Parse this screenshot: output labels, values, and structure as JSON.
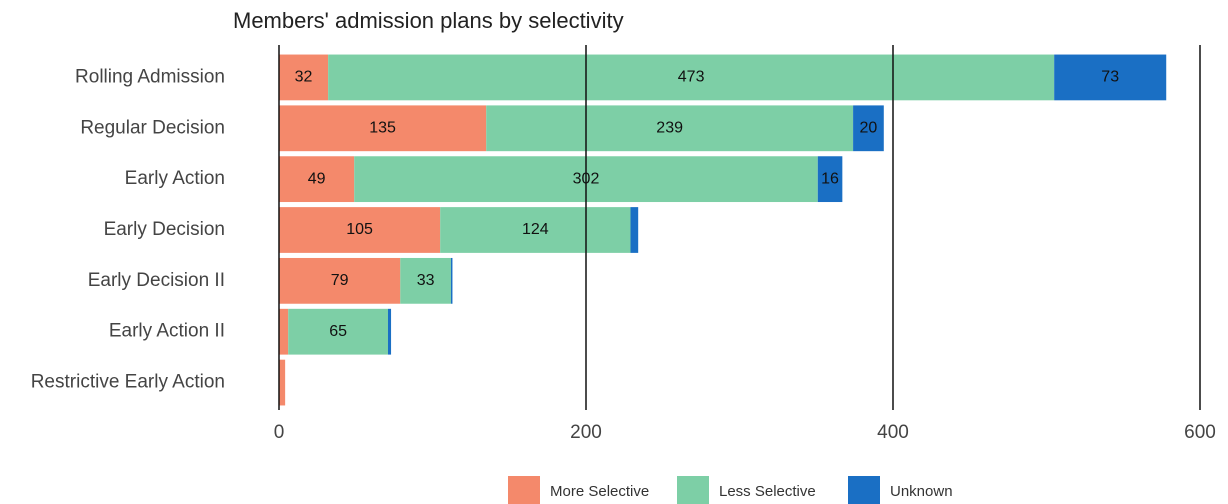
{
  "chart_data": {
    "type": "stacked_barh",
    "title": "Members' admission plans by selectivity",
    "categories": [
      "Rolling Admission",
      "Regular Decision",
      "Early Action",
      "Early Decision",
      "Early Decision II",
      "Early Action II",
      "Restrictive Early Action"
    ],
    "series": [
      {
        "name": "More Selective",
        "color": "#f4896b",
        "values": [
          32,
          135,
          49,
          105,
          79,
          6,
          4
        ]
      },
      {
        "name": "Less Selective",
        "color": "#7dcfa6",
        "values": [
          473,
          239,
          302,
          124,
          33,
          65,
          0
        ]
      },
      {
        "name": "Unknown",
        "color": "#1a6fc4",
        "values": [
          73,
          20,
          16,
          5,
          1,
          2,
          0
        ]
      }
    ],
    "xlim": [
      0,
      600
    ],
    "xticks": [
      0,
      200,
      400,
      600
    ],
    "grid": true,
    "legend": "bottom"
  }
}
